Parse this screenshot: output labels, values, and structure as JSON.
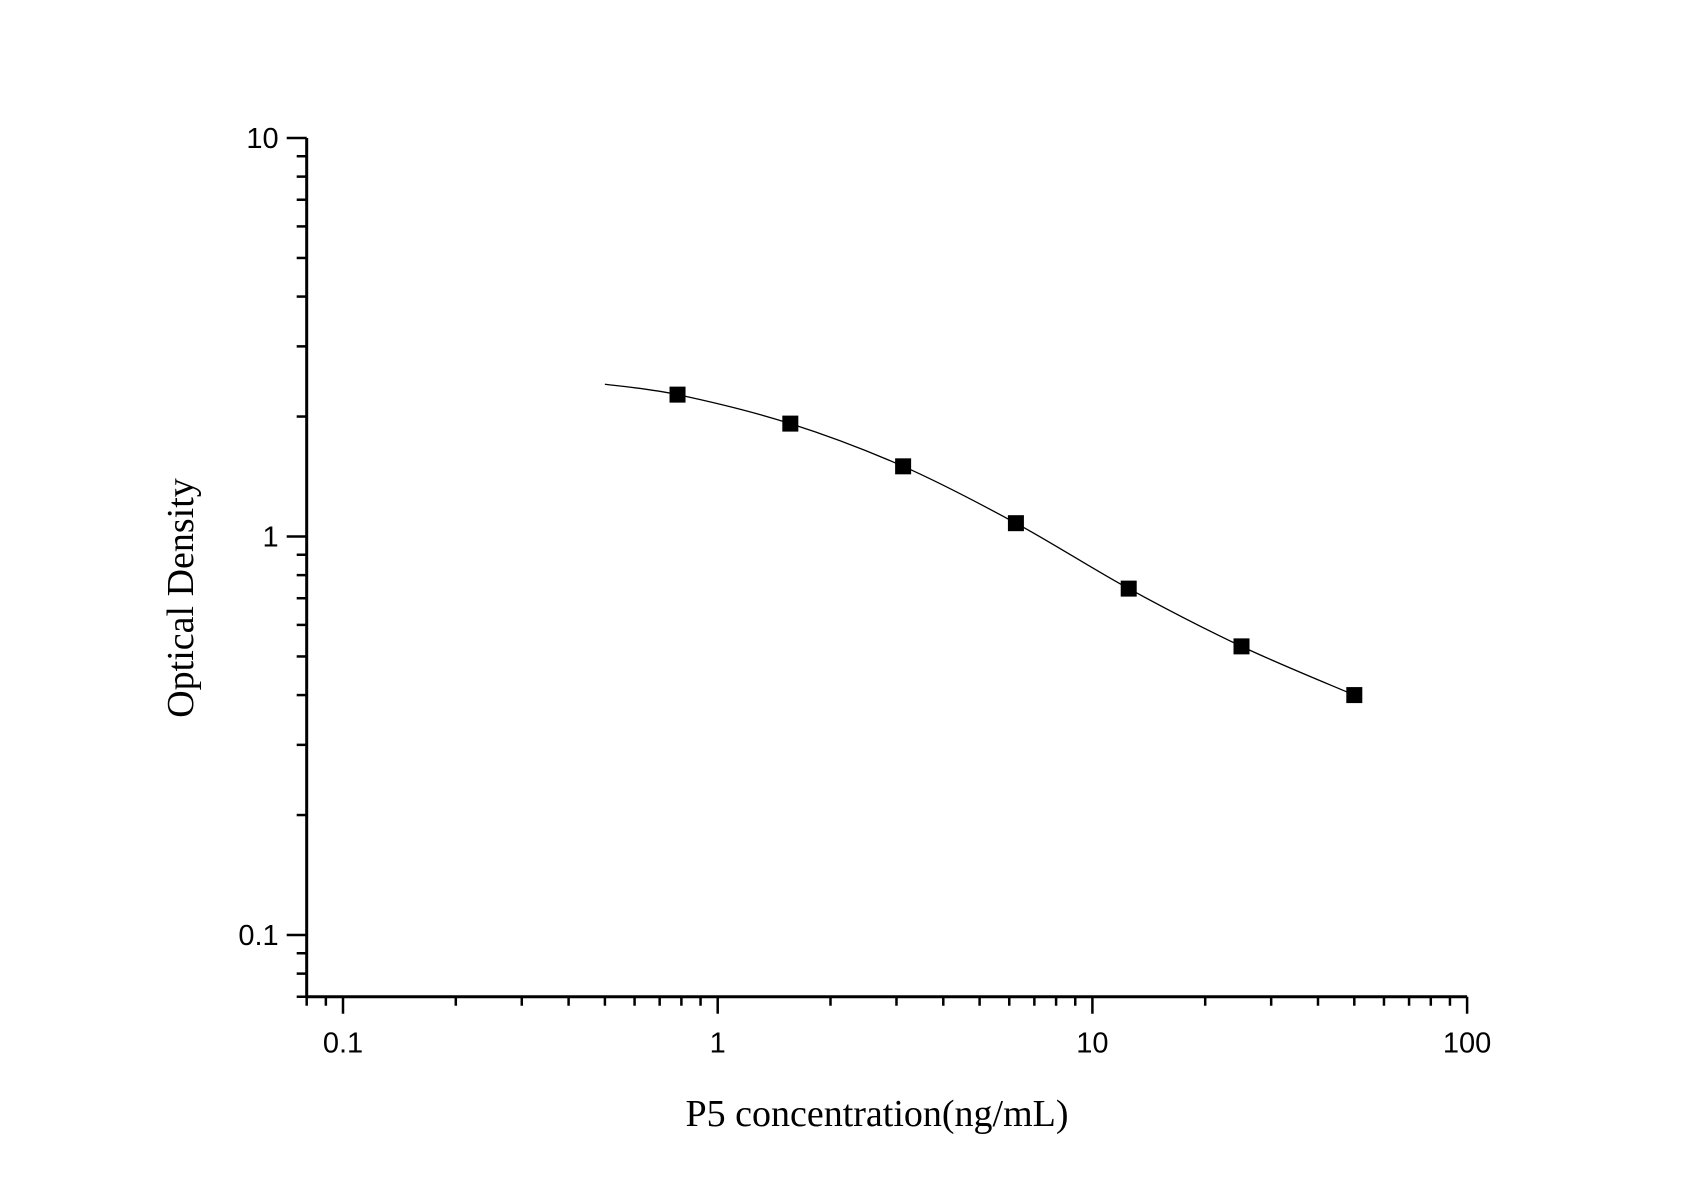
{
  "chart_data": {
    "type": "scatter",
    "title": "",
    "xlabel": "P5 concentration(ng/mL)",
    "ylabel": "Optical Density",
    "x_scale": "log",
    "y_scale": "log",
    "xlim": [
      0.08,
      100
    ],
    "ylim": [
      0.07,
      10
    ],
    "x_ticks": [
      0.1,
      1,
      10,
      100
    ],
    "x_tick_labels": [
      "0.1",
      "1",
      "10",
      "100"
    ],
    "y_ticks": [
      0.1,
      1,
      10
    ],
    "y_tick_labels": [
      "0.1",
      "1",
      "10"
    ],
    "grid": false,
    "legend": "none",
    "marker": "square",
    "color": "#000000",
    "series": [
      {
        "x": [
          0.78125,
          1.5625,
          3.125,
          6.25,
          12.5,
          25,
          50
        ],
        "y": [
          2.27,
          1.92,
          1.5,
          1.08,
          0.74,
          0.53,
          0.4
        ]
      }
    ],
    "fit_curve": {
      "x": [
        0.5,
        0.78125,
        1.5625,
        3.125,
        6.25,
        12.5,
        25,
        50
      ],
      "y": [
        2.41,
        2.27,
        1.92,
        1.5,
        1.08,
        0.74,
        0.53,
        0.4
      ]
    }
  }
}
